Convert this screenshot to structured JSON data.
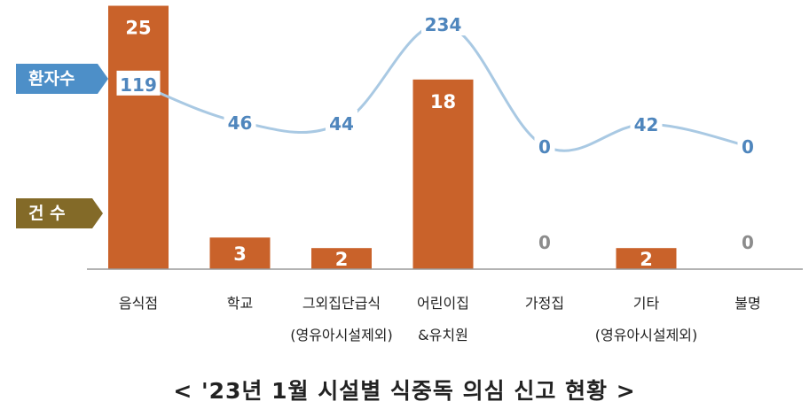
{
  "colors": {
    "bar": "#c9622a",
    "line": "#a9c9e3",
    "patients_label": "#4f86bd",
    "zero_case": "#8c8c8c",
    "badge_patients": "#4d8fc8",
    "badge_cases": "#836a28"
  },
  "legend": {
    "patients": "환자수",
    "cases": "건 수"
  },
  "caption": "< '23년 1월 시설별 식중독 의심 신고 현황 >",
  "chart_data": {
    "type": "bar",
    "categories": [
      [
        "음식점"
      ],
      [
        "학교"
      ],
      [
        "그외집단급식",
        "(영유아시설제외)"
      ],
      [
        "어린이집",
        "&유치원"
      ],
      [
        "가정집"
      ],
      [
        "기타",
        "(영유아시설제외)"
      ],
      [
        "불명"
      ]
    ],
    "series": [
      {
        "name": "건 수",
        "type": "bar",
        "values": [
          25,
          3,
          2,
          18,
          0,
          2,
          0
        ]
      },
      {
        "name": "환자수",
        "type": "line",
        "values": [
          119,
          46,
          44,
          234,
          0,
          42,
          0
        ]
      }
    ],
    "grid": false
  }
}
